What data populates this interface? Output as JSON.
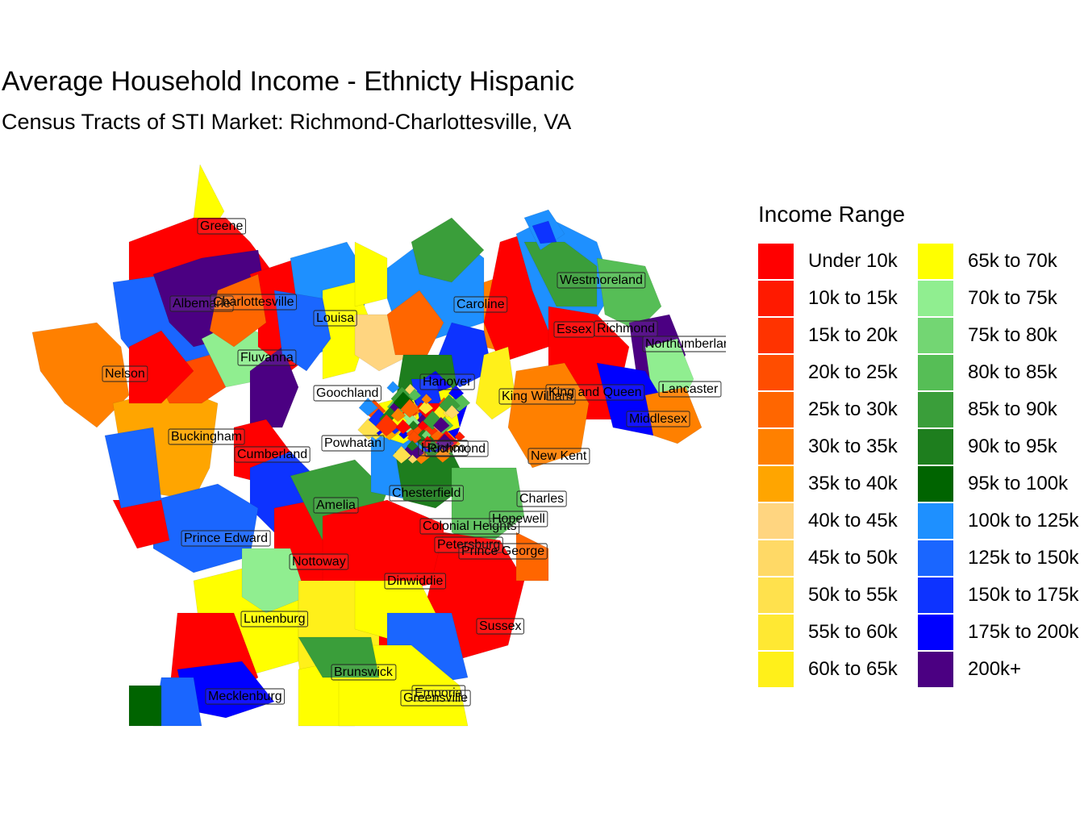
{
  "title": "Average Household Income - Ethnicty Hispanic",
  "subtitle": "Census Tracts of STI Market: Richmond-Charlottesville, VA",
  "legend": {
    "title": "Income Range",
    "items": [
      {
        "label": "Under 10k",
        "color": "#FF0000"
      },
      {
        "label": "10k to 15k",
        "color": "#FF1A00"
      },
      {
        "label": "15k to 20k",
        "color": "#FF3300"
      },
      {
        "label": "20k to 25k",
        "color": "#FF4D00"
      },
      {
        "label": "25k to 30k",
        "color": "#FF6600"
      },
      {
        "label": "30k to 35k",
        "color": "#FF8000"
      },
      {
        "label": "35k to 40k",
        "color": "#FFA500"
      },
      {
        "label": "40k to 45k",
        "color": "#FFD580"
      },
      {
        "label": "45k to 50k",
        "color": "#FFD966"
      },
      {
        "label": "50k to 55k",
        "color": "#FFE14D"
      },
      {
        "label": "55k to 60k",
        "color": "#FFE833"
      },
      {
        "label": "60k to 65k",
        "color": "#FFF01A"
      },
      {
        "label": "65k to 70k",
        "color": "#FFFF00"
      },
      {
        "label": "70k to 75k",
        "color": "#90EE90"
      },
      {
        "label": "75k to 80k",
        "color": "#73D673"
      },
      {
        "label": "80k to 85k",
        "color": "#56BE56"
      },
      {
        "label": "85k to 90k",
        "color": "#3A9E3A"
      },
      {
        "label": "90k to 95k",
        "color": "#1E7E1E"
      },
      {
        "label": "95k to 100k",
        "color": "#006400"
      },
      {
        "label": "100k to 125k",
        "color": "#1E90FF"
      },
      {
        "label": "125k to 150k",
        "color": "#1A66FF"
      },
      {
        "label": "150k to 175k",
        "color": "#0D33FF"
      },
      {
        "label": "175k to 200k",
        "color": "#0000FF"
      },
      {
        "label": "200k+",
        "color": "#4B0082"
      }
    ]
  },
  "counties": [
    {
      "name": "Greene",
      "cls": 0
    },
    {
      "name": "Albemarle",
      "cls": 20
    },
    {
      "name": "Charlottesville",
      "cls": 23
    },
    {
      "name": "Louisa",
      "cls": 0
    },
    {
      "name": "Fluvanna",
      "cls": 13
    },
    {
      "name": "Nelson",
      "cls": 5
    },
    {
      "name": "Buckingham",
      "cls": 6
    },
    {
      "name": "Cumberland",
      "cls": 3
    },
    {
      "name": "Goochland",
      "cls": 0
    },
    {
      "name": "Powhatan",
      "cls": 19
    },
    {
      "name": "Hanover",
      "cls": 19
    },
    {
      "name": "Caroline",
      "cls": 19
    },
    {
      "name": "Westmoreland",
      "cls": 15
    },
    {
      "name": "Essex",
      "cls": 0
    },
    {
      "name": "Richmond",
      "cls": 16
    },
    {
      "name": "Northumberland",
      "cls": 0
    },
    {
      "name": "King William",
      "cls": 20
    },
    {
      "name": "King and Queen",
      "cls": 16
    },
    {
      "name": "Lancaster",
      "cls": 13
    },
    {
      "name": "Middlesex",
      "cls": 22
    },
    {
      "name": "Henrico",
      "cls": 21
    },
    {
      "name": "Richmond",
      "cls": 11
    },
    {
      "name": "New Kent",
      "cls": 19
    },
    {
      "name": "Charles",
      "cls": 12
    },
    {
      "name": "Chesterfield",
      "cls": 17
    },
    {
      "name": "Amelia",
      "cls": 21
    },
    {
      "name": "Prince Edward",
      "cls": 20
    },
    {
      "name": "Colonial Heights",
      "cls": 0
    },
    {
      "name": "Hopewell",
      "cls": 11
    },
    {
      "name": "Petersburg",
      "cls": 20
    },
    {
      "name": "Prince George",
      "cls": 15
    },
    {
      "name": "Nottoway",
      "cls": 0
    },
    {
      "name": "Dinwiddie",
      "cls": 0
    },
    {
      "name": "Lunenburg",
      "cls": 11
    },
    {
      "name": "Sussex",
      "cls": 0
    },
    {
      "name": "Brunswick",
      "cls": 12
    },
    {
      "name": "Emporia",
      "cls": 1
    },
    {
      "name": "Greensville",
      "cls": 12
    },
    {
      "name": "Mecklenburg",
      "cls": 22
    }
  ]
}
